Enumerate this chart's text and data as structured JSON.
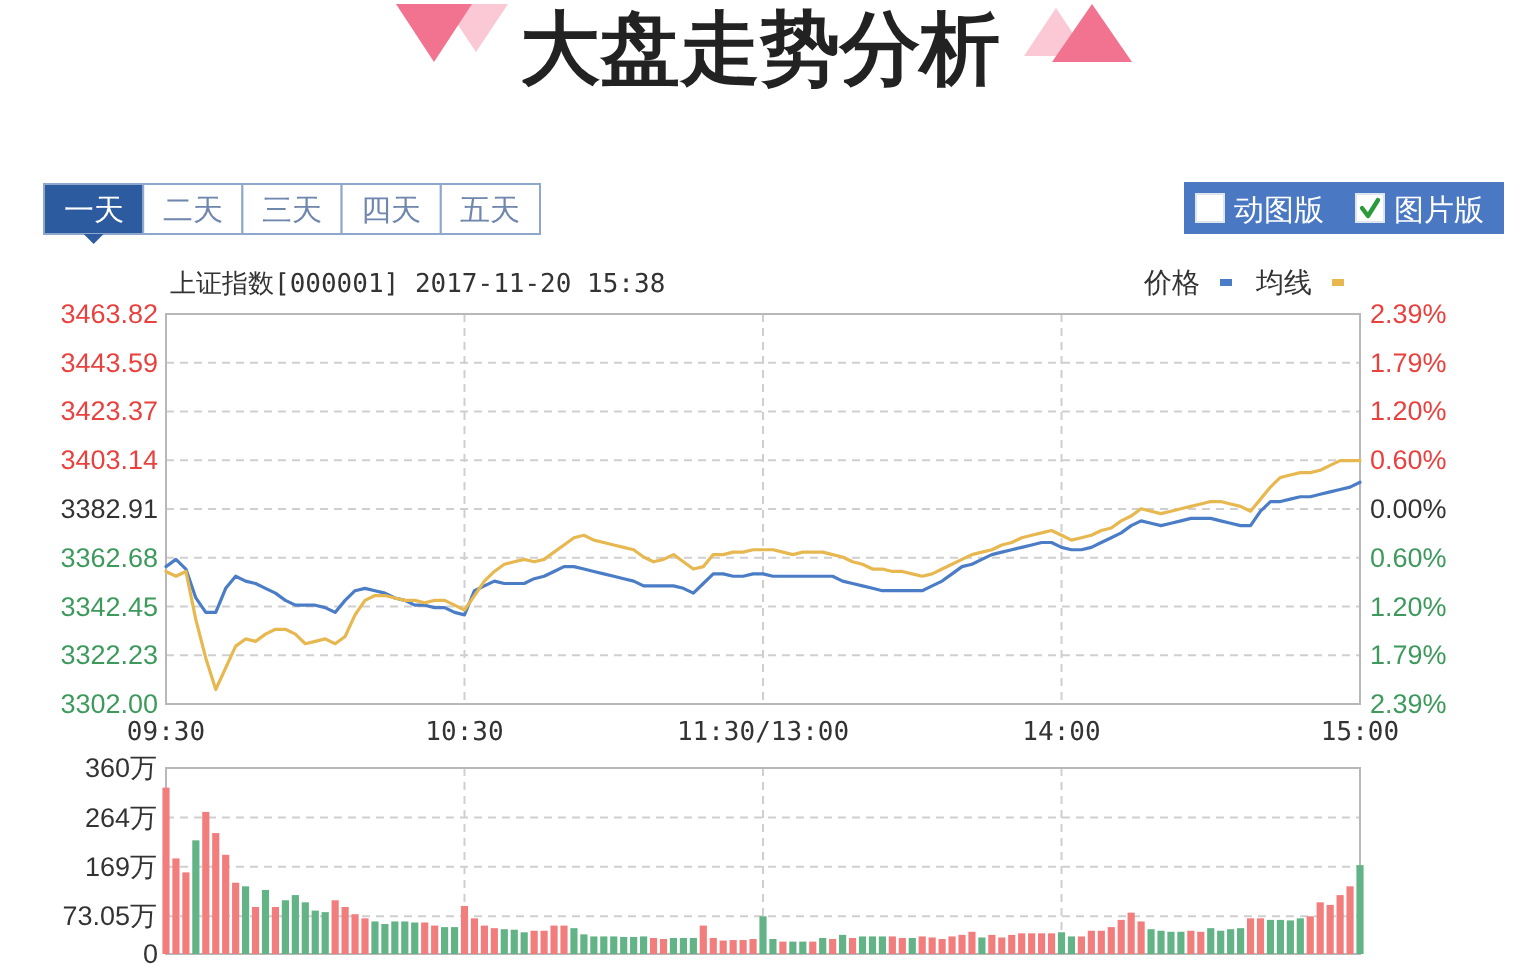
{
  "chart_data": [
    {
      "type": "other",
      "title": "大盘走势分析",
      "annotations": [
        "一天",
        "二天",
        "三天",
        "四天",
        "五天",
        "动图版",
        "图片版"
      ]
    },
    {
      "type": "line",
      "title": "上证指数[000001] 2017-11-20 15:38",
      "legend": "top right",
      "grid": true,
      "categories": [
        "09:30",
        null,
        null,
        null,
        null,
        null,
        null,
        null,
        null,
        null,
        null,
        null,
        null,
        null,
        null,
        null,
        null,
        null,
        null,
        null,
        null,
        null,
        null,
        null,
        null,
        null,
        null,
        null,
        null,
        null,
        "10:30",
        null,
        null,
        null,
        null,
        null,
        null,
        null,
        null,
        null,
        null,
        null,
        null,
        null,
        null,
        null,
        null,
        null,
        null,
        null,
        null,
        null,
        null,
        null,
        null,
        null,
        null,
        null,
        null,
        null,
        "11:30/13:00",
        null,
        null,
        null,
        null,
        null,
        null,
        null,
        null,
        null,
        null,
        null,
        null,
        null,
        null,
        null,
        null,
        null,
        null,
        null,
        null,
        null,
        null,
        null,
        null,
        null,
        null,
        null,
        null,
        null,
        "14:00",
        null,
        null,
        null,
        null,
        null,
        null,
        null,
        null,
        null,
        null,
        null,
        null,
        null,
        null,
        null,
        null,
        null,
        null,
        null,
        null,
        null,
        null,
        null,
        null,
        null,
        null,
        null,
        null,
        null,
        "15:00"
      ],
      "ylim": [
        3302.0,
        3463.82
      ],
      "yticks": [
        {
          "value": 3302.0,
          "label": "3302.00"
        },
        {
          "value": 3322.23,
          "label": "3322.23"
        },
        {
          "value": 3342.45,
          "label": "3342.45"
        },
        {
          "value": 3362.68,
          "label": "3362.68"
        },
        {
          "value": 3382.91,
          "label": "3382.91"
        },
        {
          "value": 3403.14,
          "label": "3403.14"
        },
        {
          "value": 3423.37,
          "label": "3423.37"
        },
        {
          "value": 3443.59,
          "label": "3443.59"
        },
        {
          "value": 3463.82,
          "label": "3463.82"
        }
      ],
      "y2lim": [
        -2.39,
        2.39
      ],
      "y2ticks": [
        {
          "value": -2.39,
          "label": "2.39%"
        },
        {
          "value": -1.79,
          "label": "1.79%"
        },
        {
          "value": -1.2,
          "label": "1.20%"
        },
        {
          "value": -0.6,
          "label": "0.60%"
        },
        {
          "value": 0,
          "label": "0.00%"
        },
        {
          "value": 0.6,
          "label": "0.60%"
        },
        {
          "value": 1.2,
          "label": "1.20%"
        },
        {
          "value": 1.79,
          "label": "1.79%"
        },
        {
          "value": 2.39,
          "label": "2.39%"
        }
      ],
      "series": [
        {
          "name": "价格",
          "color": "#4a7dc6",
          "values": [
            3359,
            3362,
            3358,
            3346,
            3340,
            3340,
            3350,
            3355,
            3353,
            3352,
            3350,
            3348,
            3345,
            3343,
            3343,
            3343,
            3342,
            3340,
            3345,
            3349,
            3350,
            3349,
            3348,
            3346,
            3345,
            3343,
            3343,
            3342,
            3342,
            3340,
            3339,
            3349,
            3351,
            3353,
            3352,
            3352,
            3352,
            3354,
            3355,
            3357,
            3359,
            3359,
            3358,
            3357,
            3356,
            3355,
            3354,
            3353,
            3351,
            3351,
            3351,
            3351,
            3350,
            3348,
            3352,
            3356,
            3356,
            3355,
            3355,
            3356,
            3356,
            3355,
            3355,
            3355,
            3355,
            3355,
            3355,
            3355,
            3353,
            3352,
            3351,
            3350,
            3349,
            3349,
            3349,
            3349,
            3349,
            3351,
            3353,
            3356,
            3359,
            3360,
            3362,
            3364,
            3365,
            3366,
            3367,
            3368,
            3369,
            3369,
            3367,
            3366,
            3366,
            3367,
            3369,
            3371,
            3373,
            3376,
            3378,
            3377,
            3376,
            3377,
            3378,
            3379,
            3379,
            3379,
            3378,
            3377,
            3376,
            3376,
            3382,
            3386,
            3386,
            3387,
            3388,
            3388,
            3389,
            3390,
            3391,
            3392,
            3394
          ]
        },
        {
          "name": "均线",
          "color": "#e8b850",
          "values": [
            3357,
            3355,
            3357,
            3337,
            3321,
            3308,
            3317,
            3326,
            3329,
            3328,
            3331,
            3333,
            3333,
            3331,
            3327,
            3328,
            3329,
            3327,
            3330,
            3339,
            3345,
            3347,
            3347,
            3346,
            3345,
            3345,
            3344,
            3345,
            3345,
            3343,
            3341,
            3347,
            3353,
            3357,
            3360,
            3361,
            3362,
            3361,
            3362,
            3365,
            3368,
            3371,
            3372,
            3370,
            3369,
            3368,
            3367,
            3366,
            3363,
            3361,
            3362,
            3364,
            3361,
            3358,
            3359,
            3364,
            3364,
            3365,
            3365,
            3366,
            3366,
            3366,
            3365,
            3364,
            3365,
            3365,
            3365,
            3364,
            3363,
            3361,
            3360,
            3358,
            3358,
            3357,
            3357,
            3356,
            3355,
            3356,
            3358,
            3360,
            3362,
            3364,
            3365,
            3366,
            3368,
            3369,
            3371,
            3372,
            3373,
            3374,
            3372,
            3370,
            3371,
            3372,
            3374,
            3375,
            3378,
            3380,
            3383,
            3382,
            3381,
            3382,
            3383,
            3384,
            3385,
            3386,
            3386,
            3385,
            3384,
            3382,
            3387,
            3392,
            3396,
            3397,
            3398,
            3398,
            3399,
            3401,
            3403,
            3403,
            3403
          ]
        }
      ]
    },
    {
      "type": "bar",
      "grid": true,
      "tick_labels": "y",
      "categories": [
        null,
        null,
        null,
        null,
        null,
        null,
        null,
        null,
        null,
        null,
        null,
        null,
        null,
        null,
        null,
        null,
        null,
        null,
        null,
        null,
        null,
        null,
        null,
        null,
        null,
        null,
        null,
        null,
        null,
        null,
        null,
        null,
        null,
        null,
        null,
        null,
        null,
        null,
        null,
        null,
        null,
        null,
        null,
        null,
        null,
        null,
        null,
        null,
        null,
        null,
        null,
        null,
        null,
        null,
        null,
        null,
        null,
        null,
        null,
        null,
        null,
        null,
        null,
        null,
        null,
        null,
        null,
        null,
        null,
        null,
        null,
        null,
        null,
        null,
        null,
        null,
        null,
        null,
        null,
        null,
        null,
        null,
        null,
        null,
        null,
        null,
        null,
        null,
        null,
        null,
        null,
        null,
        null,
        null,
        null,
        null,
        null,
        null,
        null,
        null,
        null,
        null,
        null,
        null,
        null,
        null,
        null,
        null,
        null,
        null,
        null,
        null,
        null,
        null,
        null,
        null,
        null,
        null,
        null,
        null,
        null
      ],
      "ylim": [
        0,
        360
      ],
      "yticks": [
        0,
        {
          "value": 73.05,
          "label": "73.05万"
        },
        {
          "value": 169,
          "label": "169万"
        },
        {
          "value": 264,
          "label": "264万"
        },
        {
          "value": 360,
          "label": "360万"
        }
      ],
      "values": [
        322,
        185,
        158,
        220,
        275,
        234,
        192,
        138,
        131,
        91,
        124,
        91,
        104,
        114,
        100,
        84,
        81,
        104,
        91,
        77,
        69,
        63,
        58,
        63,
        63,
        61,
        61,
        55,
        52,
        52,
        93,
        69,
        55,
        50,
        48,
        47,
        42,
        45,
        45,
        55,
        55,
        50,
        38,
        34,
        34,
        34,
        33,
        33,
        34,
        31,
        29,
        31,
        31,
        31,
        55,
        31,
        26,
        27,
        27,
        29,
        73,
        29,
        24,
        24,
        24,
        24,
        31,
        29,
        37,
        31,
        34,
        34,
        34,
        34,
        31,
        31,
        34,
        32,
        29,
        34,
        37,
        43,
        32,
        37,
        32,
        37,
        40,
        40,
        40,
        40,
        42,
        34,
        34,
        45,
        45,
        52,
        66,
        80,
        63,
        48,
        45,
        43,
        43,
        45,
        43,
        50,
        45,
        48,
        50,
        69,
        69,
        66,
        66,
        65,
        69,
        73,
        100,
        95,
        114,
        131,
        172
      ],
      "colors": [
        "#f27d7d",
        "#f27d7d",
        "#f27d7d",
        "#62b386",
        "#f27d7d",
        "#f27d7d",
        "#f27d7d",
        "#f27d7d",
        "#62b386",
        "#f27d7d",
        "#62b386",
        "#f27d7d",
        "#62b386",
        "#62b386",
        "#62b386",
        "#62b386",
        "#62b386",
        "#f27d7d",
        "#f27d7d",
        "#f27d7d",
        "#f27d7d",
        "#62b386",
        "#62b386",
        "#62b386",
        "#62b386",
        "#62b386",
        "#f27d7d",
        "#f27d7d",
        "#62b386",
        "#62b386",
        "#f27d7d",
        "#f27d7d",
        "#f27d7d",
        "#f27d7d",
        "#62b386",
        "#62b386",
        "#62b386",
        "#f27d7d",
        "#f27d7d",
        "#f27d7d",
        "#f27d7d",
        "#62b386",
        "#62b386",
        "#62b386",
        "#62b386",
        "#62b386",
        "#62b386",
        "#62b386",
        "#62b386",
        "#f27d7d",
        "#f27d7d",
        "#62b386",
        "#62b386",
        "#62b386",
        "#f27d7d",
        "#f27d7d",
        "#f27d7d",
        "#f27d7d",
        "#f27d7d",
        "#f27d7d",
        "#62b386",
        "#62b386",
        "#f27d7d",
        "#62b386",
        "#62b386",
        "#f27d7d",
        "#62b386",
        "#f27d7d",
        "#62b386",
        "#f27d7d",
        "#62b386",
        "#62b386",
        "#62b386",
        "#f27d7d",
        "#f27d7d",
        "#62b386",
        "#f27d7d",
        "#f27d7d",
        "#f27d7d",
        "#f27d7d",
        "#f27d7d",
        "#f27d7d",
        "#62b386",
        "#f27d7d",
        "#f27d7d",
        "#f27d7d",
        "#f27d7d",
        "#f27d7d",
        "#f27d7d",
        "#f27d7d",
        "#62b386",
        "#62b386",
        "#f27d7d",
        "#f27d7d",
        "#f27d7d",
        "#f27d7d",
        "#f27d7d",
        "#f27d7d",
        "#f27d7d",
        "#62b386",
        "#62b386",
        "#62b386",
        "#62b386",
        "#f27d7d",
        "#f27d7d",
        "#62b386",
        "#62b386",
        "#62b386",
        "#62b386",
        "#f27d7d",
        "#f27d7d",
        "#62b386",
        "#62b386",
        "#62b386",
        "#62b386",
        "#f27d7d",
        "#f27d7d",
        "#f27d7d",
        "#f27d7d",
        "#f27d7d",
        "#62b386"
      ]
    }
  ]
}
